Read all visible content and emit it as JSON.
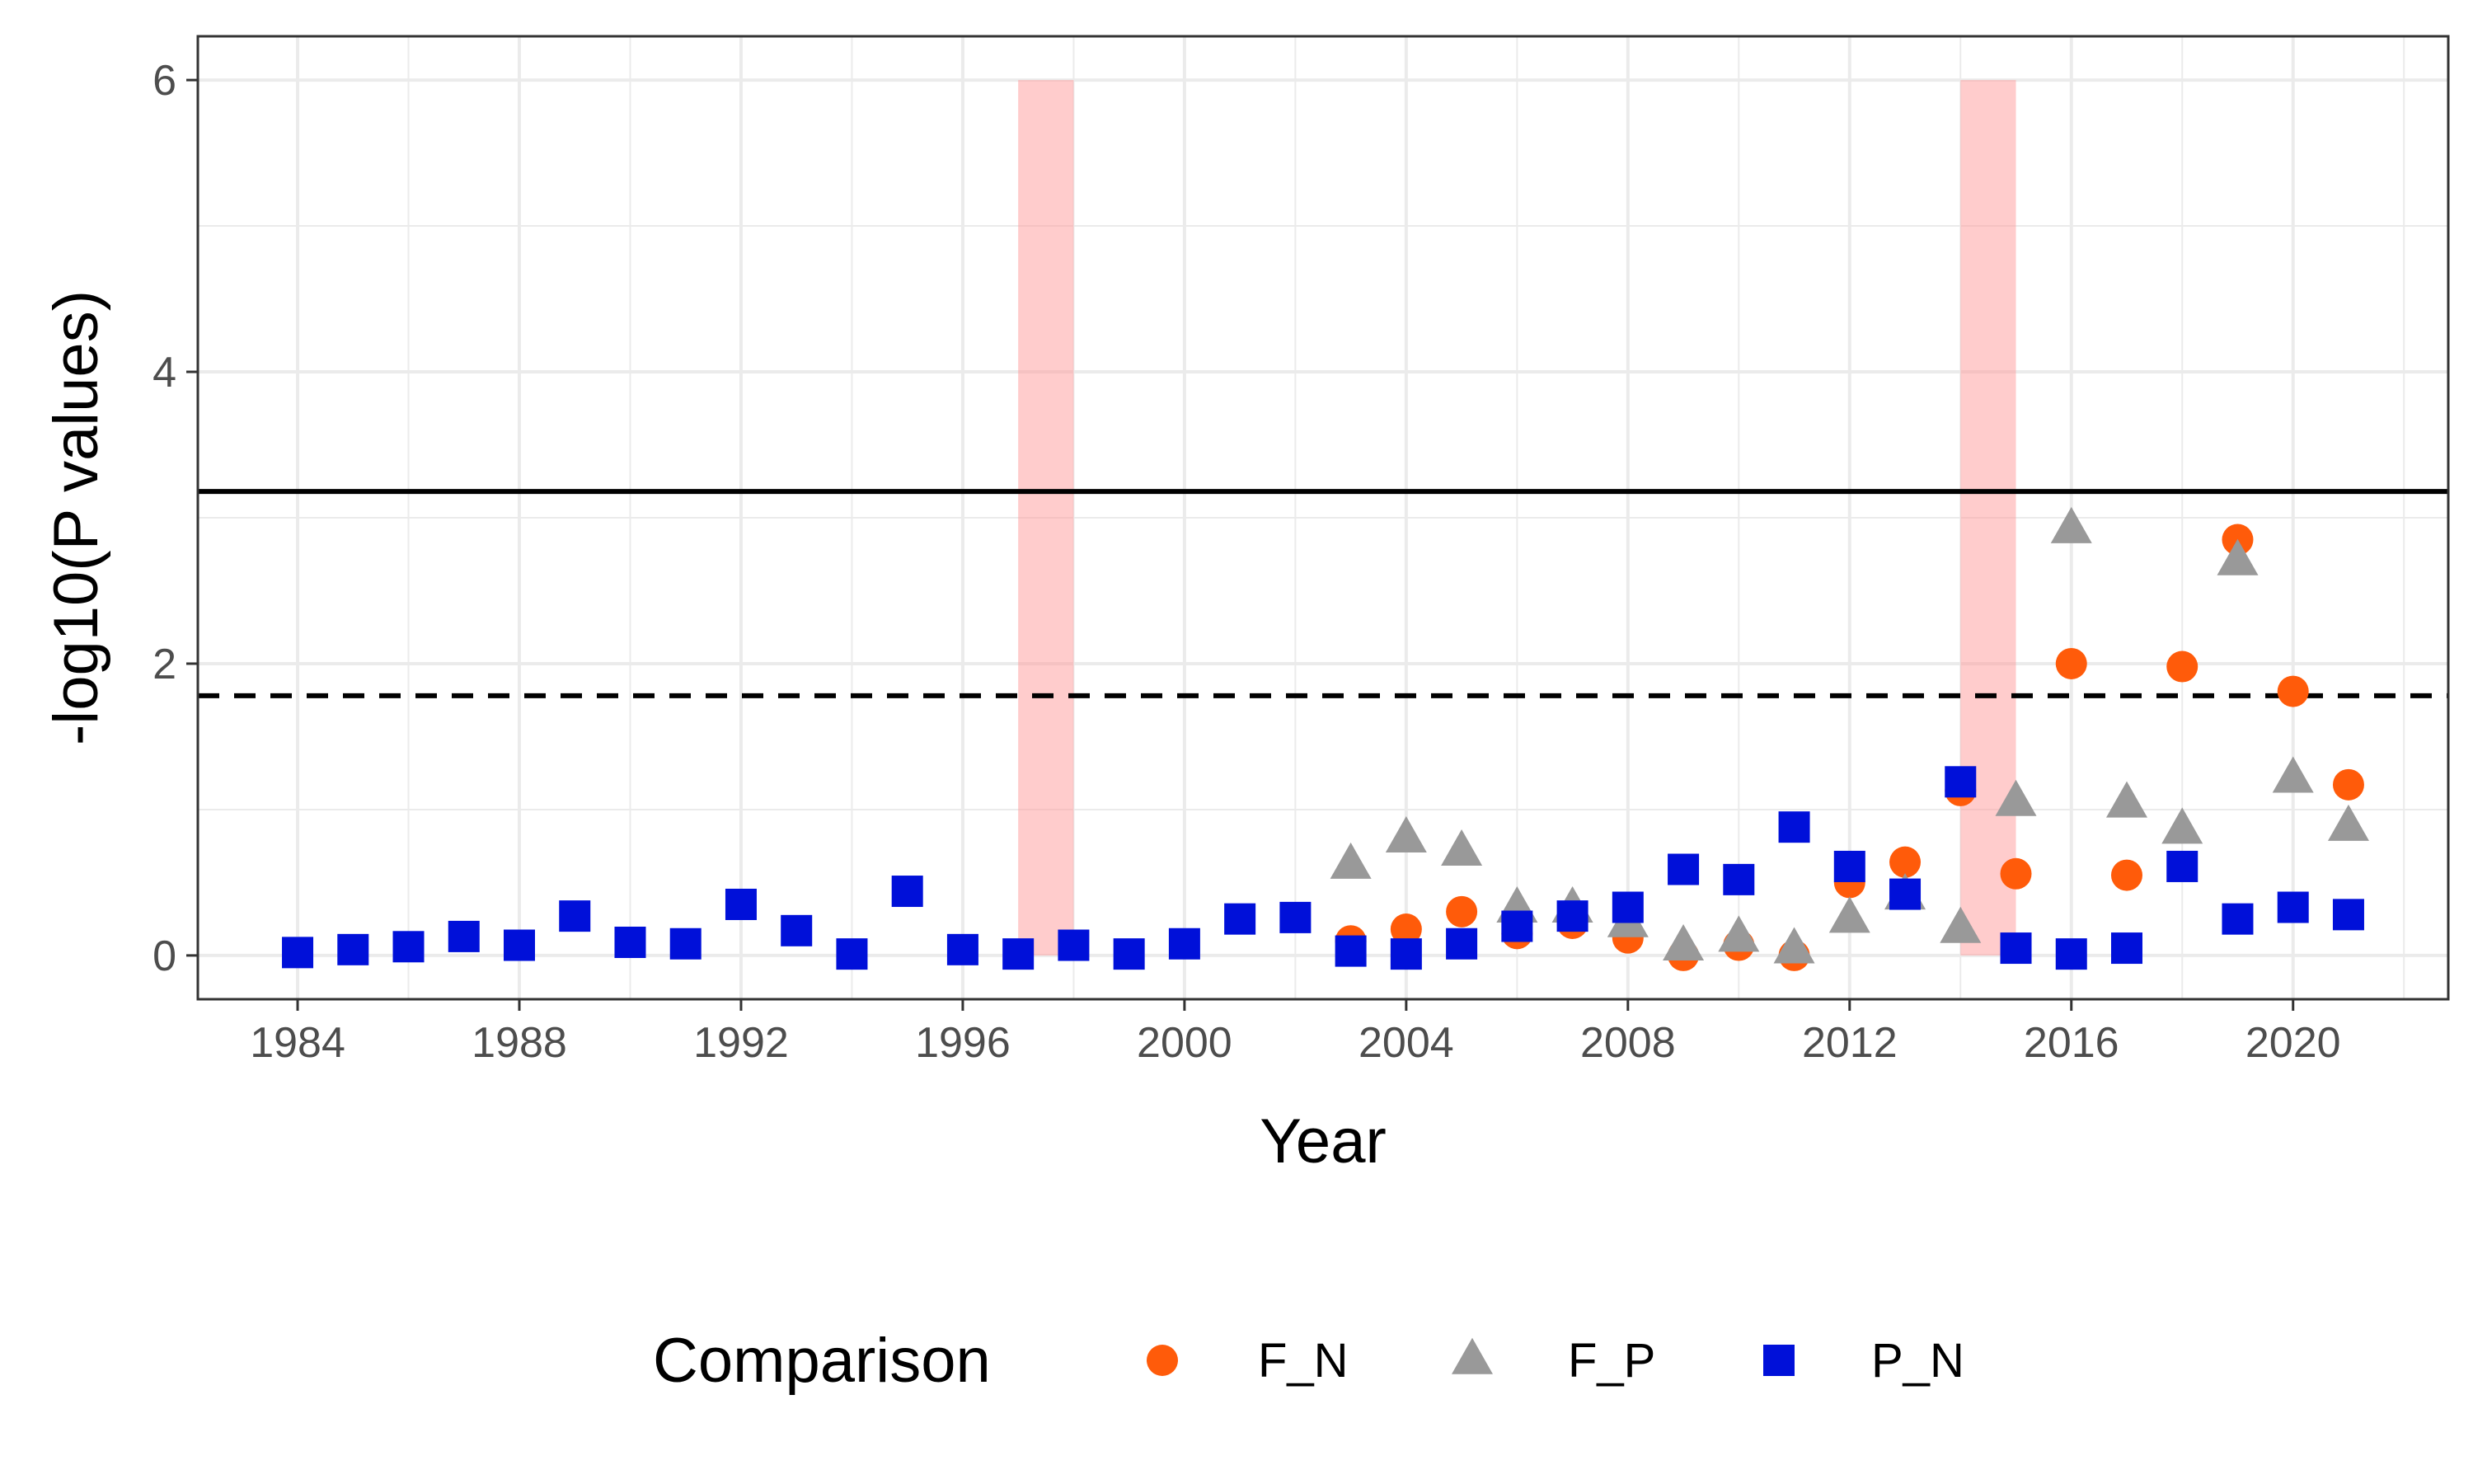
{
  "chart_data": {
    "type": "scatter",
    "xlabel": "Year",
    "ylabel": "-log10(P values)",
    "xlim": [
      1982.2,
      2022.8
    ],
    "ylim": [
      -0.3,
      6.3
    ],
    "x_ticks": [
      1984,
      1988,
      1992,
      1996,
      2000,
      2004,
      2008,
      2012,
      2016,
      2020
    ],
    "y_ticks": [
      0,
      2,
      4,
      6
    ],
    "grid": true,
    "background": "#ffffff",
    "grid_color": "#ebebeb",
    "reference_lines": [
      {
        "style": "solid",
        "y": 3.18,
        "color": "#000000"
      },
      {
        "style": "dashed",
        "y": 1.78,
        "color": "#000000"
      }
    ],
    "highlight_bands": [
      {
        "x_start": 1997,
        "x_end": 1998,
        "y_start": 0,
        "y_end": 6,
        "color": "#ff9999"
      },
      {
        "x_start": 2014,
        "x_end": 2015,
        "y_start": 0,
        "y_end": 6,
        "color": "#ff9999"
      }
    ],
    "legend": {
      "title": "Comparison",
      "position": "bottom"
    },
    "series": [
      {
        "name": "F_N",
        "marker": "circle",
        "color": "#ff5b0a",
        "points": [
          [
            2003,
            0.1
          ],
          [
            2004,
            0.18
          ],
          [
            2005,
            0.3
          ],
          [
            2006,
            0.15
          ],
          [
            2007,
            0.22
          ],
          [
            2008,
            0.12
          ],
          [
            2009,
            0.0
          ],
          [
            2010,
            0.07
          ],
          [
            2011,
            0.0
          ],
          [
            2012,
            0.5
          ],
          [
            2013,
            0.64
          ],
          [
            2014,
            1.13
          ],
          [
            2015,
            0.56
          ],
          [
            2016,
            2.0
          ],
          [
            2017,
            0.55
          ],
          [
            2018,
            1.98
          ],
          [
            2019,
            2.85
          ],
          [
            2020,
            1.81
          ],
          [
            2021,
            1.17
          ]
        ]
      },
      {
        "name": "F_P",
        "marker": "triangle",
        "color": "#999999",
        "points": [
          [
            2003,
            0.62
          ],
          [
            2004,
            0.8
          ],
          [
            2005,
            0.71
          ],
          [
            2006,
            0.32
          ],
          [
            2007,
            0.32
          ],
          [
            2008,
            0.22
          ],
          [
            2009,
            0.06
          ],
          [
            2010,
            0.12
          ],
          [
            2011,
            0.04
          ],
          [
            2012,
            0.25
          ],
          [
            2013,
            0.41
          ],
          [
            2014,
            0.18
          ],
          [
            2015,
            1.05
          ],
          [
            2016,
            2.92
          ],
          [
            2017,
            1.04
          ],
          [
            2018,
            0.86
          ],
          [
            2019,
            2.7
          ],
          [
            2020,
            1.21
          ],
          [
            2021,
            0.88
          ]
        ]
      },
      {
        "name": "P_N",
        "marker": "square",
        "color": "#0010d9",
        "points": [
          [
            1984,
            0.02
          ],
          [
            1985,
            0.04
          ],
          [
            1986,
            0.06
          ],
          [
            1987,
            0.13
          ],
          [
            1988,
            0.07
          ],
          [
            1989,
            0.27
          ],
          [
            1990,
            0.09
          ],
          [
            1991,
            0.08
          ],
          [
            1992,
            0.35
          ],
          [
            1993,
            0.17
          ],
          [
            1994,
            0.01
          ],
          [
            1995,
            0.44
          ],
          [
            1996,
            0.04
          ],
          [
            1997,
            0.01
          ],
          [
            1998,
            0.07
          ],
          [
            1999,
            0.01
          ],
          [
            2000,
            0.08
          ],
          [
            2001,
            0.25
          ],
          [
            2002,
            0.26
          ],
          [
            2003,
            0.03
          ],
          [
            2004,
            0.01
          ],
          [
            2005,
            0.08
          ],
          [
            2006,
            0.2
          ],
          [
            2007,
            0.27
          ],
          [
            2008,
            0.33
          ],
          [
            2009,
            0.59
          ],
          [
            2010,
            0.52
          ],
          [
            2011,
            0.88
          ],
          [
            2012,
            0.61
          ],
          [
            2013,
            0.42
          ],
          [
            2014,
            1.19
          ],
          [
            2015,
            0.05
          ],
          [
            2016,
            0.01
          ],
          [
            2017,
            0.05
          ],
          [
            2018,
            0.61
          ],
          [
            2019,
            0.25
          ],
          [
            2020,
            0.33
          ],
          [
            2021,
            0.28
          ]
        ]
      }
    ]
  }
}
